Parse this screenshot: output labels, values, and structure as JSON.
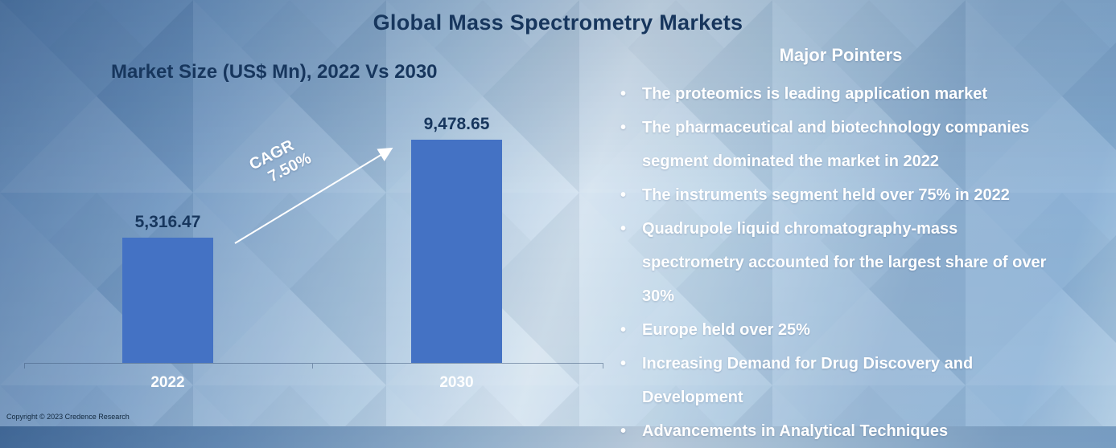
{
  "page_title": "Global Mass Spectrometry Markets",
  "chart_data": {
    "type": "bar",
    "title": "Market Size (US$ Mn), 2022 Vs 2030",
    "categories": [
      "2022",
      "2030"
    ],
    "values": [
      5316.47,
      9478.65
    ],
    "value_labels": [
      "5,316.47",
      "9,478.65"
    ],
    "cagr": {
      "label": "CAGR",
      "value": "7.50%"
    },
    "ylim": [
      0,
      9478.65
    ],
    "bar_color": "#4472c4",
    "grid": false,
    "legend_position": "none"
  },
  "pointers": {
    "heading": "Major Pointers",
    "items": [
      "The proteomics is leading application market",
      "The pharmaceutical and biotechnology companies segment dominated the market in 2022",
      "The instruments segment held over 75% in 2022",
      "Quadrupole liquid chromatography-mass spectrometry accounted for the largest share of over 30%",
      "Europe held over 25%",
      "Increasing Demand for Drug Discovery and Development",
      "Advancements in Analytical Techniques"
    ]
  },
  "footer": {
    "copyright": "Copyright © 2023 Credence Research"
  },
  "colors": {
    "title_text": "#17365d",
    "bar": "#4472c4",
    "pointer_text": "#ffffff"
  }
}
